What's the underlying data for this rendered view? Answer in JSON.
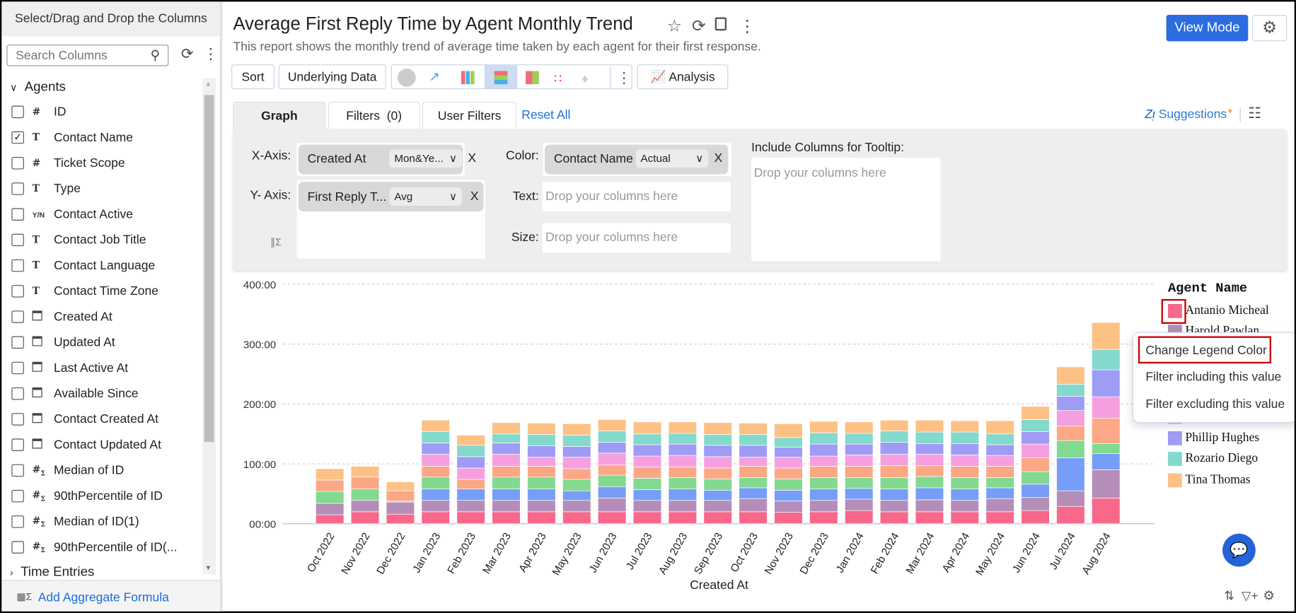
{
  "sidebar": {
    "header": "Select/Drag and Drop the Columns",
    "search_placeholder": "Search Columns",
    "category": "Agents",
    "items": [
      {
        "label": "ID",
        "type": "#",
        "checked": false
      },
      {
        "label": "Contact Name",
        "type": "T",
        "checked": true
      },
      {
        "label": "Ticket Scope",
        "type": "#",
        "checked": false
      },
      {
        "label": "Type",
        "type": "T",
        "checked": false
      },
      {
        "label": "Contact Active",
        "type": "Y/N",
        "checked": false
      },
      {
        "label": "Contact Job Title",
        "type": "T",
        "checked": false
      },
      {
        "label": "Contact Language",
        "type": "T",
        "checked": false
      },
      {
        "label": "Contact Time Zone",
        "type": "T",
        "checked": false
      },
      {
        "label": "Created At",
        "type": "date",
        "checked": false
      },
      {
        "label": "Updated At",
        "type": "date",
        "checked": false
      },
      {
        "label": "Last Active At",
        "type": "date",
        "checked": false
      },
      {
        "label": "Available Since",
        "type": "date",
        "checked": false
      },
      {
        "label": "Contact Created At",
        "type": "date",
        "checked": false
      },
      {
        "label": "Contact Updated At",
        "type": "date",
        "checked": false
      },
      {
        "label": "Median of ID",
        "type": "#Σ",
        "checked": false
      },
      {
        "label": "90thPercentile of ID",
        "type": "#Σ",
        "checked": false
      },
      {
        "label": "Median of ID(1)",
        "type": "#Σ",
        "checked": false
      },
      {
        "label": "90thPercentile of ID(...",
        "type": "#Σ",
        "checked": false
      }
    ],
    "collapsed_category": "Time Entries",
    "footer_link": "Add Aggregate Formula"
  },
  "header": {
    "title": "Average First Reply Time by Agent Monthly Trend",
    "subtitle": "This report shows the monthly trend of average time taken by each agent for their first response.",
    "view_mode": "View Mode"
  },
  "toolbar": {
    "sort": "Sort",
    "underlying_data": "Underlying Data",
    "analysis": "Analysis",
    "chart_types": [
      "pie",
      "line",
      "bar",
      "stacked-bar",
      "combination",
      "scatter",
      "map"
    ],
    "selected_chart_type": "stacked-bar"
  },
  "tabs": [
    {
      "label": "Graph",
      "active": true
    },
    {
      "label": "Filters  (0)",
      "active": false
    },
    {
      "label": "User Filters",
      "active": false
    }
  ],
  "reset_all": "Reset All",
  "suggestions": "Suggestions",
  "config": {
    "x_axis_label": "X-Axis:",
    "x_axis_column": "Created At",
    "x_axis_agg": "Mon&Ye...",
    "y_axis_label": "Y- Axis:",
    "y_axis_column": "First Reply T...",
    "y_axis_agg": "Avg",
    "color_label": "Color:",
    "color_column": "Contact Name",
    "color_agg": "Actual",
    "text_label": "Text:",
    "size_label": "Size:",
    "drop_placeholder": "Drop your columns here",
    "tooltip_label": "Include Columns for Tooltip:",
    "remove": "X"
  },
  "context_menu": [
    "Change Legend Color",
    "Filter including this value",
    "Filter excluding this value"
  ],
  "chart_data": {
    "type": "bar",
    "stacked": true,
    "xlabel": "Created At",
    "ylabel": "",
    "ylim": [
      0,
      400
    ],
    "yticks": [
      "00:00",
      "100:00",
      "200:00",
      "300:00",
      "400:00"
    ],
    "grid": true,
    "legend_title": "Agent Name",
    "legend_placement": "right",
    "categories": [
      "Oct 2022",
      "Nov 2022",
      "Dec 2022",
      "Jan 2023",
      "Feb 2023",
      "Mar 2023",
      "Apr 2023",
      "May 2023",
      "Jun 2023",
      "Jul 2023",
      "Aug 2023",
      "Sep 2023",
      "Oct 2023",
      "Nov 2023",
      "Dec 2023",
      "Jan 2024",
      "Feb 2024",
      "Mar 2024",
      "Apr 2024",
      "May 2024",
      "Jun 2024",
      "Jul 2024",
      "Aug 2024"
    ],
    "series": [
      {
        "name": "Antanio Micheal",
        "color": "#f7688a",
        "values": [
          15,
          20,
          16,
          20,
          20,
          20,
          20,
          20,
          20,
          20,
          20,
          20,
          20,
          19,
          20,
          22,
          20,
          20,
          20,
          20,
          22,
          29,
          43
        ]
      },
      {
        "name": "Harold Pawlan",
        "color": "#b48eb8",
        "values": [
          19,
          19,
          20,
          19,
          19,
          19,
          19,
          19,
          23,
          19,
          19,
          19,
          22,
          19,
          19,
          19,
          19,
          20,
          19,
          22,
          22,
          26,
          47
        ]
      },
      {
        "color": "#769ef8",
        "values": [
          0,
          0,
          0,
          19,
          19,
          19,
          19,
          16,
          19,
          18,
          19,
          17,
          18,
          18,
          19,
          18,
          19,
          20,
          19,
          18,
          22,
          55,
          27
        ]
      },
      {
        "color": "#82d990",
        "values": [
          20,
          19,
          2,
          20,
          0,
          20,
          20,
          19,
          19,
          19,
          19,
          19,
          17,
          19,
          19,
          18,
          19,
          19,
          19,
          17,
          21,
          29,
          17
        ]
      },
      {
        "color": "#fca785",
        "values": [
          19,
          20,
          17,
          18,
          16,
          18,
          18,
          18,
          17,
          19,
          18,
          18,
          19,
          18,
          19,
          19,
          20,
          18,
          19,
          19,
          23,
          24,
          42
        ]
      },
      {
        "color": "#f59fe0",
        "values": [
          0,
          0,
          0,
          20,
          19,
          20,
          15,
          19,
          20,
          18,
          19,
          19,
          15,
          18,
          17,
          19,
          19,
          19,
          19,
          18,
          23,
          26,
          36
        ]
      },
      {
        "name": "Phillip Hughes",
        "color": "#9e9cf5",
        "values": [
          0,
          0,
          0,
          19,
          19,
          19,
          19,
          18,
          18,
          19,
          19,
          19,
          20,
          17,
          20,
          18,
          20,
          18,
          19,
          18,
          21,
          24,
          45
        ]
      },
      {
        "name": "Rozario Diego",
        "color": "#82d9cc",
        "values": [
          0,
          0,
          0,
          19,
          19,
          15,
          19,
          19,
          19,
          18,
          18,
          18,
          18,
          16,
          19,
          18,
          19,
          19,
          19,
          18,
          20,
          20,
          34
        ]
      },
      {
        "name": "Tina Thomas",
        "color": "#fdc186",
        "values": [
          19,
          18,
          15,
          19,
          17,
          19,
          19,
          19,
          19,
          20,
          19,
          20,
          19,
          23,
          19,
          19,
          18,
          20,
          19,
          22,
          22,
          29,
          45
        ]
      }
    ]
  }
}
